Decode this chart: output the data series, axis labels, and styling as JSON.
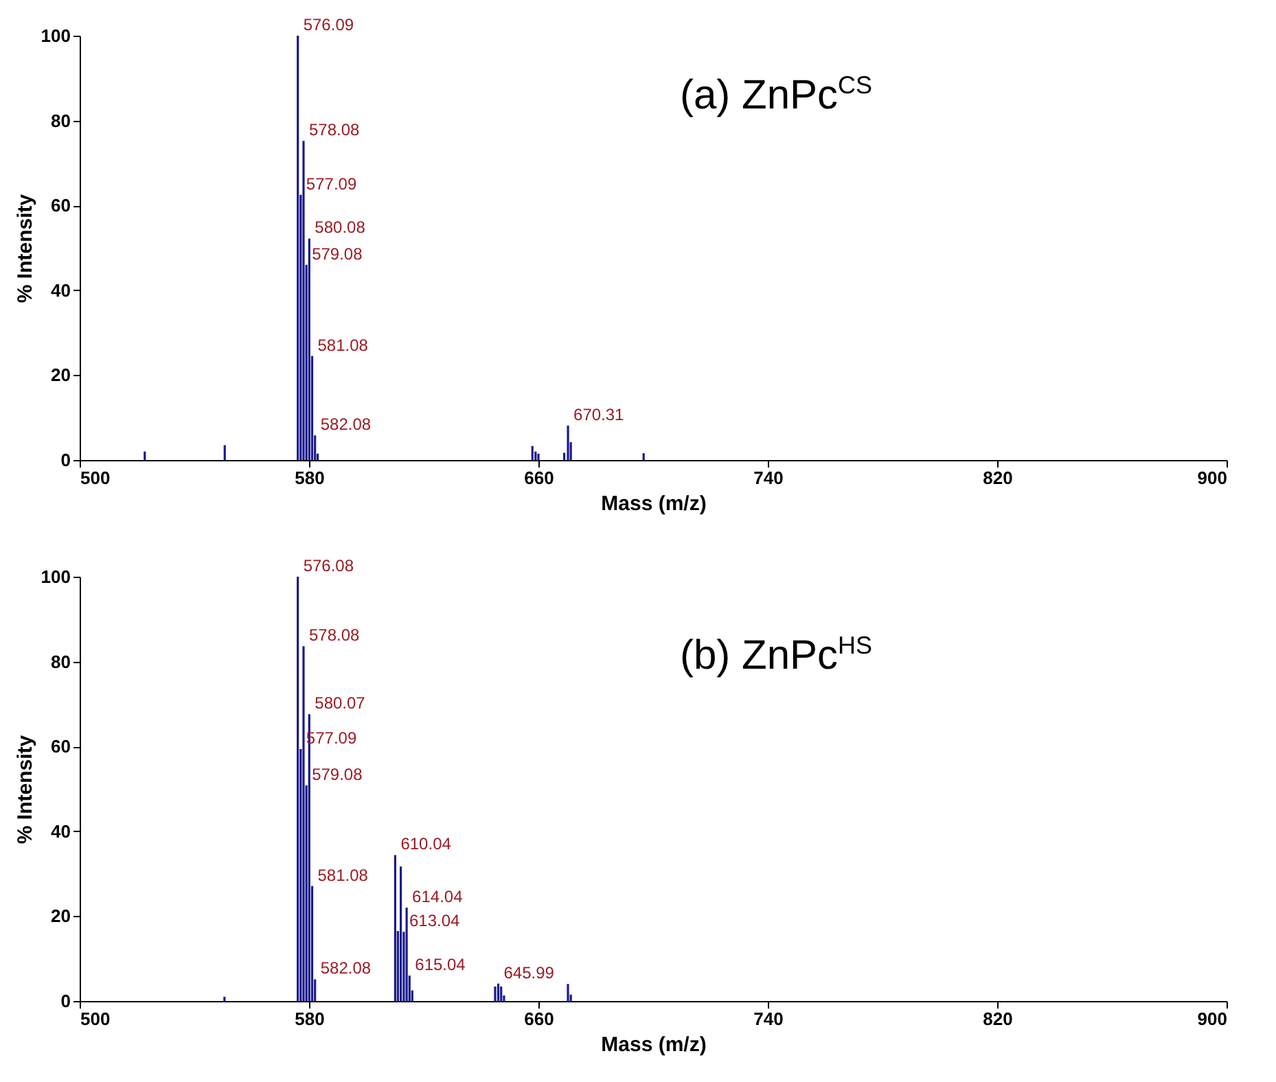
{
  "chart_data": [
    {
      "type": "bar",
      "title": "(a) ZnPc$^{CS}$",
      "xlabel": "Mass (m/z)",
      "ylabel": "% Intensity",
      "x": [
        522.7,
        550.6,
        576.09,
        577.09,
        578.08,
        579.08,
        580.08,
        581.08,
        582.08,
        583.0,
        657.9,
        659.0,
        660.0,
        669.0,
        670.31,
        671.3,
        696.7
      ],
      "series": [
        {
          "color": "#1a1a8c",
          "values": [
            2,
            3.5,
            100,
            62.5,
            75.2,
            46,
            52.2,
            24.5,
            5.8,
            1.5,
            3.3,
            2,
            1.5,
            1.7,
            8.1,
            4.2,
            1.6
          ]
        }
      ],
      "value_labels": [
        null,
        null,
        "576.09",
        "577.09",
        "578.08",
        "579.08",
        "580.08",
        "581.08",
        "582.08",
        null,
        null,
        null,
        null,
        null,
        "670.31",
        null,
        null
      ],
      "xlim": [
        500,
        900
      ],
      "xticks": [
        500,
        580,
        660,
        740,
        820,
        900
      ],
      "ylim": [
        0,
        100
      ],
      "yticks": [
        0,
        20,
        40,
        60,
        80,
        100
      ],
      "grid": false
    },
    {
      "type": "bar",
      "title": "(b) ZnPc$^{HS}$",
      "xlabel": "Mass (m/z)",
      "ylabel": "% Intensity",
      "x": [
        550.5,
        576.08,
        577.09,
        578.08,
        579.08,
        580.07,
        581.08,
        582.08,
        610.04,
        611.0,
        612.0,
        613.04,
        614.04,
        615.04,
        616.0,
        644.9,
        645.99,
        647.0,
        648.0,
        670.3,
        671.3
      ],
      "series": [
        {
          "color": "#1a1a8c",
          "values": [
            1,
            100,
            59.4,
            83.6,
            50.8,
            67.6,
            27.1,
            5.1,
            34.4,
            16.5,
            31.7,
            16.3,
            22.0,
            6.0,
            2.5,
            3.4,
            4.1,
            3.4,
            1.3,
            4.0,
            1.5
          ]
        }
      ],
      "value_labels": [
        null,
        "576.08",
        "577.09",
        "578.08",
        "579.08",
        "580.07",
        "581.08",
        "582.08",
        "610.04",
        null,
        null,
        "613.04",
        "614.04",
        "615.04",
        null,
        null,
        "645.99",
        null,
        null,
        null,
        null
      ],
      "xlim": [
        500,
        900
      ],
      "xticks": [
        500,
        580,
        660,
        740,
        820,
        900
      ],
      "ylim": [
        0,
        100
      ],
      "yticks": [
        0,
        20,
        40,
        60,
        80,
        100
      ],
      "grid": false
    }
  ]
}
